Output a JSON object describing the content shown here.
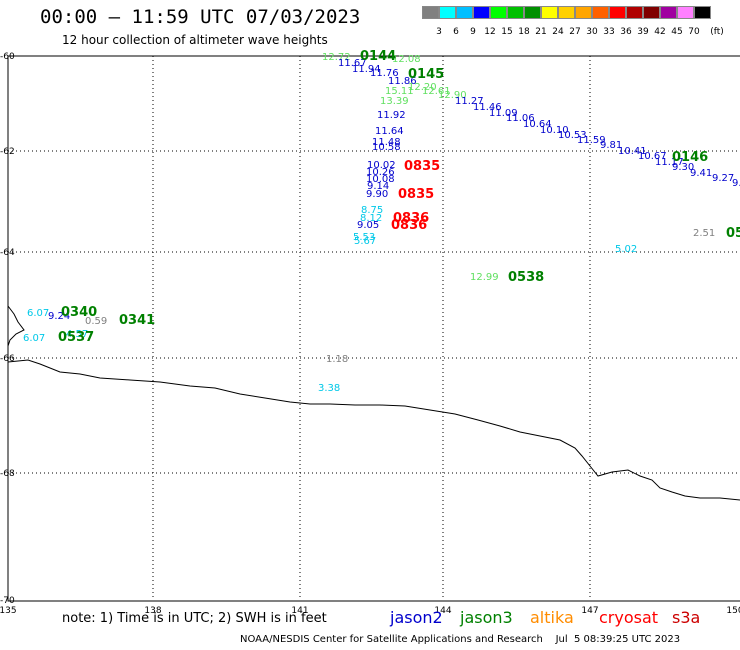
{
  "title": "00:00 – 11:59 UTC 07/03/2023",
  "subtitle": "12 hour collection of altimeter wave heights",
  "legend": {
    "unit": "(ft)",
    "labels": [
      "3",
      "6",
      "9",
      "12",
      "15",
      "18",
      "21",
      "24",
      "27",
      "30",
      "33",
      "36",
      "39",
      "42",
      "45",
      "70"
    ],
    "colors": [
      "#808080",
      "#00ffff",
      "#00bfff",
      "#0000ff",
      "#00ff00",
      "#00c000",
      "#009000",
      "#ffff00",
      "#ffd000",
      "#ffa500",
      "#ff6000",
      "#ff0000",
      "#b00000",
      "#800000",
      "#a000a0",
      "#ff80ff",
      "#000000"
    ]
  },
  "axes": {
    "lat_labels": [
      "-60",
      "-62",
      "-64",
      "-66",
      "-68",
      "-70"
    ],
    "lon_labels": [
      "135",
      "138",
      "141",
      "144",
      "147",
      "150"
    ]
  },
  "satellite_colors": {
    "jason2": "#0000cc",
    "jason3": "#008000",
    "altika": "#ff8c00",
    "cryosat": "#ff0000",
    "s3a": "#cc0000"
  },
  "swh_colors": {
    "grey": "#808080",
    "cyan": "#00c8e8",
    "blue": "#0000cc",
    "ltgreen": "#60e060"
  },
  "observations": [
    {
      "v": "12.72",
      "c": "ltgreen"
    },
    {
      "v": "12.08",
      "c": "ltgreen"
    },
    {
      "v": "11.67",
      "c": "blue"
    },
    {
      "v": "11.94",
      "c": "blue"
    },
    {
      "v": "11.76",
      "c": "blue"
    },
    {
      "v": "11.86",
      "c": "blue"
    },
    {
      "v": "15.11",
      "c": "ltgreen"
    },
    {
      "v": "12.20",
      "c": "ltgreen"
    },
    {
      "v": "12.61",
      "c": "ltgreen"
    },
    {
      "v": "12.90",
      "c": "ltgreen"
    },
    {
      "v": "13.39",
      "c": "ltgreen"
    },
    {
      "v": "11.27",
      "c": "blue"
    },
    {
      "v": "11.46",
      "c": "blue"
    },
    {
      "v": "11.09",
      "c": "blue"
    },
    {
      "v": "11.06",
      "c": "blue"
    },
    {
      "v": "10.64",
      "c": "blue"
    },
    {
      "v": "10.10",
      "c": "blue"
    },
    {
      "v": "10.53",
      "c": "blue"
    },
    {
      "v": "11.59",
      "c": "blue"
    },
    {
      "v": "9.81",
      "c": "blue"
    },
    {
      "v": "10.41",
      "c": "blue"
    },
    {
      "v": "10.67",
      "c": "blue"
    },
    {
      "v": "11.17",
      "c": "blue"
    },
    {
      "v": "9.30",
      "c": "blue"
    },
    {
      "v": "9.41",
      "c": "blue"
    },
    {
      "v": "9.27",
      "c": "blue"
    },
    {
      "v": "9.",
      "c": "blue"
    },
    {
      "v": "11.92",
      "c": "blue"
    },
    {
      "v": "11.64",
      "c": "blue"
    },
    {
      "v": "11.48",
      "c": "blue"
    },
    {
      "v": "10.58",
      "c": "blue"
    },
    {
      "v": "10.02",
      "c": "blue"
    },
    {
      "v": "10.26",
      "c": "blue"
    },
    {
      "v": "10.08",
      "c": "blue"
    },
    {
      "v": "9.14",
      "c": "blue"
    },
    {
      "v": "9.90",
      "c": "blue"
    },
    {
      "v": "8.75",
      "c": "cyan"
    },
    {
      "v": "8.12",
      "c": "cyan"
    },
    {
      "v": "9.05",
      "c": "blue"
    },
    {
      "v": "5.53",
      "c": "cyan"
    },
    {
      "v": "5.67",
      "c": "cyan"
    },
    {
      "v": "5.02",
      "c": "cyan"
    },
    {
      "v": "2.51",
      "c": "grey"
    },
    {
      "v": "12.99",
      "c": "ltgreen"
    },
    {
      "v": "6.07",
      "c": "cyan"
    },
    {
      "v": "9.24",
      "c": "blue"
    },
    {
      "v": "0.59",
      "c": "grey"
    },
    {
      "v": "6.07",
      "c": "cyan"
    },
    {
      "v": "4.57",
      "c": "cyan"
    },
    {
      "v": "1.18",
      "c": "grey"
    },
    {
      "v": "3.38",
      "c": "cyan"
    }
  ],
  "time_labels": [
    {
      "t": "0144",
      "sat": "jason3"
    },
    {
      "t": "0145",
      "sat": "jason3"
    },
    {
      "t": "0146",
      "sat": "jason3"
    },
    {
      "t": "05",
      "sat": "jason3"
    },
    {
      "t": "0835",
      "sat": "cryosat"
    },
    {
      "t": "0835",
      "sat": "cryosat"
    },
    {
      "t": "0836",
      "sat": "cryosat"
    },
    {
      "t": "0836",
      "sat": "cryosat"
    },
    {
      "t": "0538",
      "sat": "jason3"
    },
    {
      "t": "0340",
      "sat": "jason3"
    },
    {
      "t": "0341",
      "sat": "jason3"
    },
    {
      "t": "0537",
      "sat": "jason3"
    }
  ],
  "note": "note:  1) Time is in UTC;  2) SWH is in feet",
  "satellites": [
    "jason2",
    "jason3",
    "altika",
    "cryosat",
    "s3a"
  ],
  "credit": "NOAA/NESDIS Center for Satellite Applications and Research    Jul  5 08:39:25 UTC 2023"
}
